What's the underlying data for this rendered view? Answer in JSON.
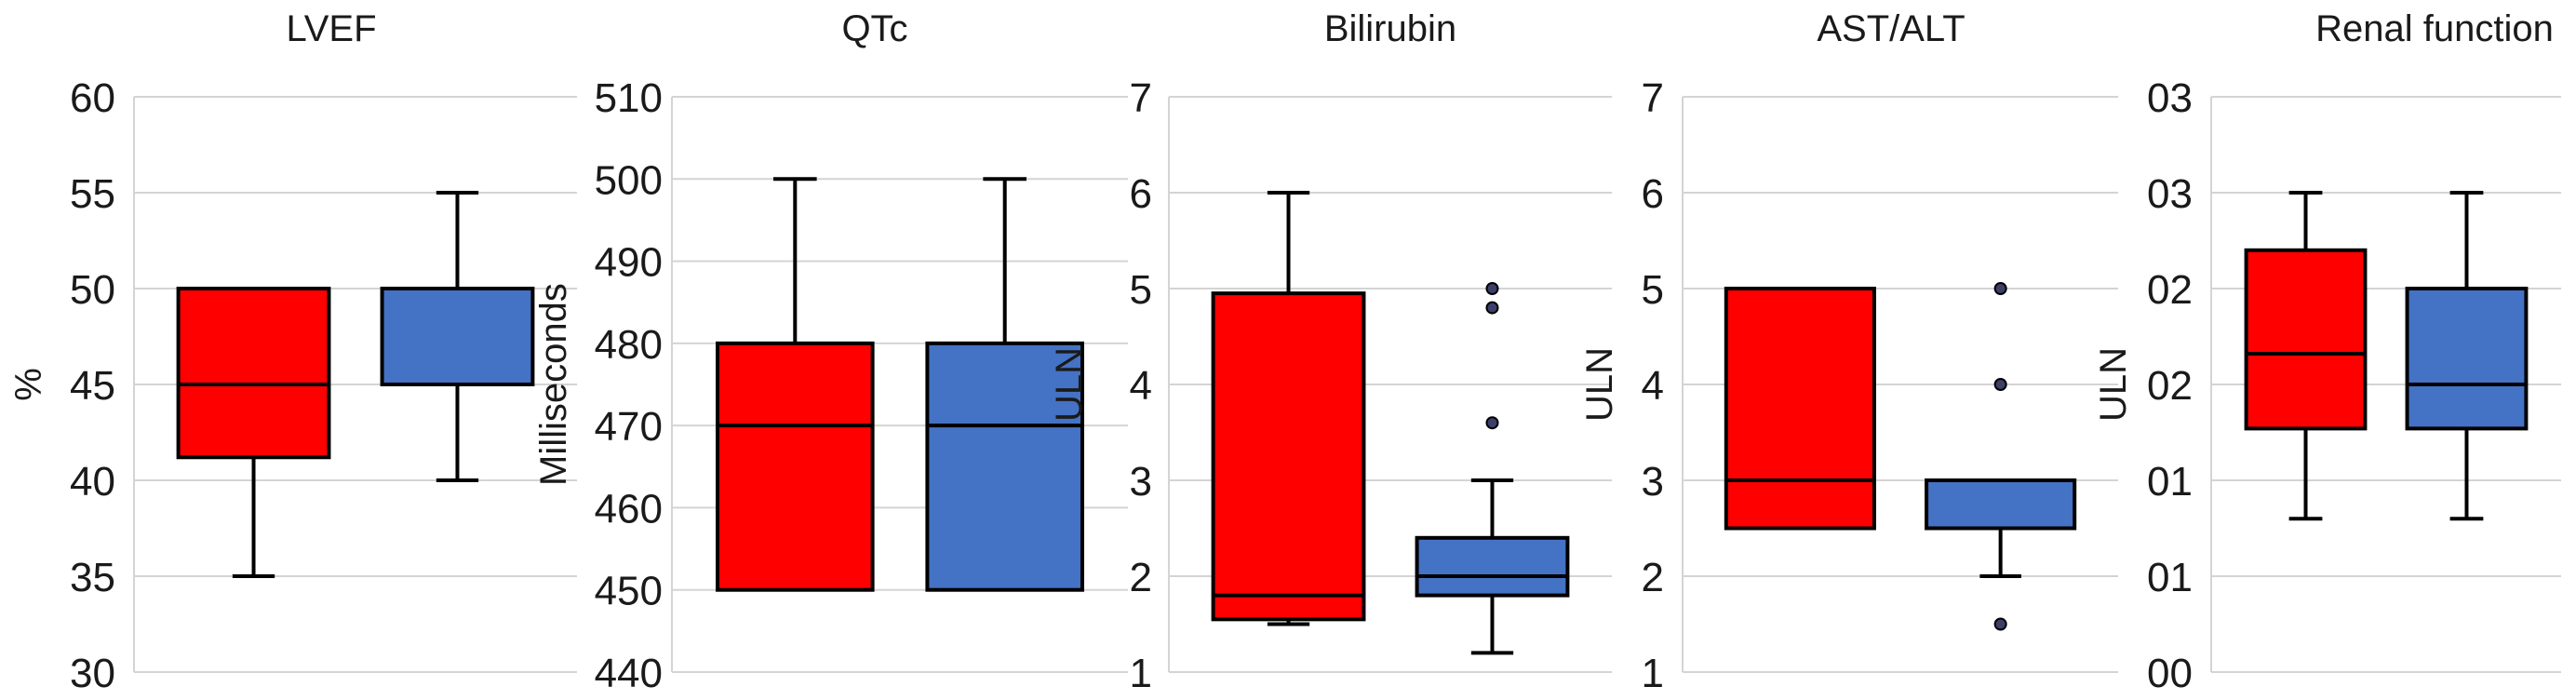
{
  "colors": {
    "group_a": "#ff0000",
    "group_b": "#4472c4",
    "outlier_fill": "#3d3f6b"
  },
  "chart_data": [
    {
      "type": "boxplot",
      "title": "LVEF",
      "ylabel": "%",
      "ylim": [
        30,
        60
      ],
      "yticks": [
        30,
        35,
        40,
        45,
        50,
        55,
        60
      ],
      "ytick_labels": [
        "30",
        "35",
        "40",
        "45",
        "50",
        "55",
        "60"
      ],
      "series": [
        {
          "color": "group_a",
          "min": 35,
          "q1": 41.2,
          "median": 45,
          "q3": 50,
          "max": 50,
          "outliers": []
        },
        {
          "color": "group_b",
          "min": 40,
          "q1": 45,
          "median": 45,
          "q3": 50,
          "max": 55,
          "outliers": []
        }
      ]
    },
    {
      "type": "boxplot",
      "title": "QTc",
      "ylabel": "Milliseconds",
      "ylim": [
        440,
        510
      ],
      "yticks": [
        440,
        450,
        460,
        470,
        480,
        490,
        500,
        510
      ],
      "ytick_labels": [
        "440",
        "450",
        "460",
        "470",
        "480",
        "490",
        "500",
        "510"
      ],
      "series": [
        {
          "color": "group_a",
          "min": 450,
          "q1": 450,
          "median": 470,
          "q3": 480,
          "max": 500,
          "outliers": []
        },
        {
          "color": "group_b",
          "min": 450,
          "q1": 450,
          "median": 470,
          "q3": 480,
          "max": 500,
          "outliers": []
        }
      ]
    },
    {
      "type": "boxplot",
      "title": "Bilirubin",
      "ylabel": "ULN",
      "ylim": [
        1,
        7
      ],
      "yticks": [
        1,
        2,
        3,
        4,
        5,
        6,
        7
      ],
      "ytick_labels": [
        "1",
        "2",
        "3",
        "4",
        "5",
        "6",
        "7"
      ],
      "series": [
        {
          "color": "group_a",
          "min": 1.5,
          "q1": 1.55,
          "median": 1.8,
          "q3": 4.95,
          "max": 6,
          "outliers": []
        },
        {
          "color": "group_b",
          "min": 1.2,
          "q1": 1.8,
          "median": 2.0,
          "q3": 2.4,
          "max": 3.0,
          "outliers": [
            3.6,
            4.8,
            5.0
          ]
        }
      ]
    },
    {
      "type": "boxplot",
      "title": "AST/ALT",
      "ylabel": "ULN",
      "ylim": [
        1,
        7
      ],
      "yticks": [
        1,
        2,
        3,
        4,
        5,
        6,
        7
      ],
      "ytick_labels": [
        "1",
        "2",
        "3",
        "4",
        "5",
        "6",
        "7"
      ],
      "series": [
        {
          "color": "group_a",
          "min": 2.5,
          "q1": 2.5,
          "median": 3.0,
          "q3": 5.0,
          "max": 5.0,
          "outliers": []
        },
        {
          "color": "group_b",
          "min": 2.0,
          "q1": 2.5,
          "median": 2.5,
          "q3": 3.0,
          "max": 3.0,
          "outliers": [
            1.5,
            4.0,
            5.0
          ]
        }
      ]
    },
    {
      "type": "boxplot",
      "title": "Renal  function",
      "ylabel": "ULN",
      "ylim": [
        0,
        3
      ],
      "yticks": [
        0,
        0.5,
        1,
        1.5,
        2,
        2.5,
        3
      ],
      "ytick_labels": [
        "00",
        "01",
        "01",
        "02",
        "02",
        "03",
        "03"
      ],
      "series": [
        {
          "color": "group_a",
          "min": 0.8,
          "q1": 1.27,
          "median": 1.66,
          "q3": 2.2,
          "max": 2.5,
          "outliers": []
        },
        {
          "color": "group_b",
          "min": 0.8,
          "q1": 1.27,
          "median": 1.5,
          "q3": 2.0,
          "max": 2.5,
          "outliers": []
        }
      ]
    }
  ]
}
